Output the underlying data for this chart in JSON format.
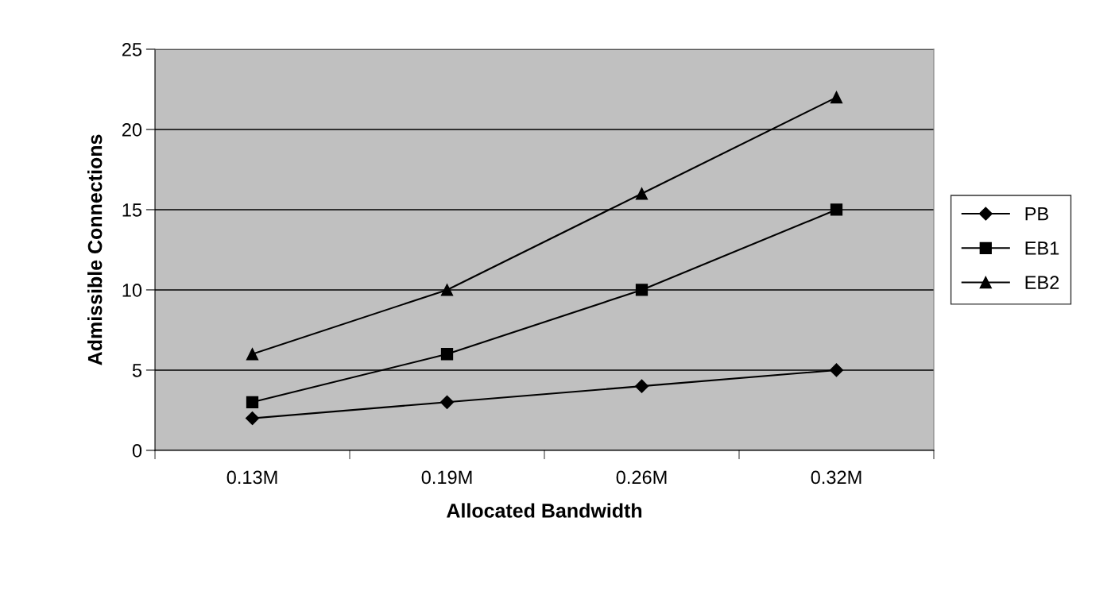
{
  "chart_data": {
    "type": "line",
    "xlabel": "Allocated Bandwidth",
    "ylabel": "Admissible Connections",
    "categories": [
      "0.13M",
      "0.19M",
      "0.26M",
      "0.32M"
    ],
    "series": [
      {
        "name": "PB",
        "color": "#000000",
        "marker": "diamond",
        "values": [
          2,
          3,
          4,
          5
        ]
      },
      {
        "name": "EB1",
        "color": "#000000",
        "marker": "square",
        "values": [
          3,
          6,
          10,
          15
        ]
      },
      {
        "name": "EB2",
        "color": "#000000",
        "marker": "triangle",
        "values": [
          6,
          10,
          16,
          22
        ]
      }
    ],
    "ylim": [
      0,
      25
    ],
    "yticks": [
      0,
      5,
      10,
      15,
      20,
      25
    ],
    "grid": "y",
    "legend": "right",
    "line_style": "solid"
  }
}
